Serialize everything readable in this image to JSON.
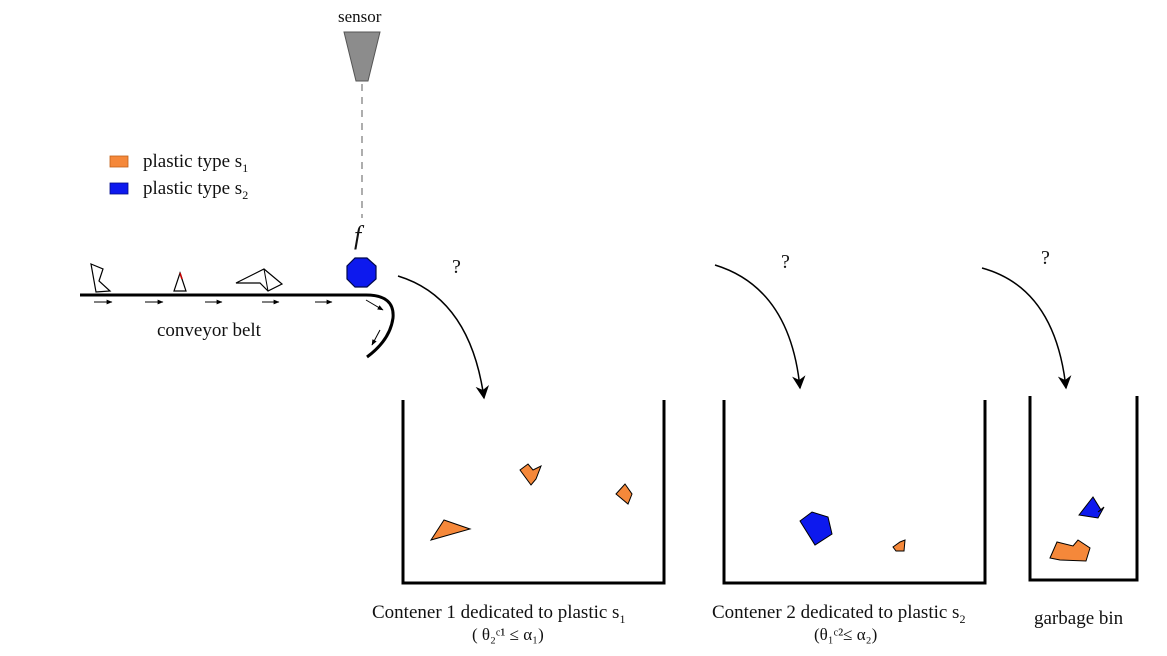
{
  "sensor": {
    "label": "sensor",
    "color": "#8c8c8c"
  },
  "legend": {
    "items": [
      {
        "label": "plastic type s",
        "sub": "1",
        "color": "#f5883a"
      },
      {
        "label": "plastic type s",
        "sub": "2",
        "color": "#0d19ee"
      }
    ]
  },
  "feature_symbol": "f",
  "conveyor": {
    "label": "conveyor belt"
  },
  "decision_marks": [
    "?",
    "?",
    "?"
  ],
  "bins": [
    {
      "title": "Contener 1 dedicated to plastic s",
      "title_sub": "1",
      "condition": "( θ₂ᶜ¹ ≤ α₁)"
    },
    {
      "title": "Contener 2 dedicated to plastic s",
      "title_sub": "2",
      "condition": "(θ₁ᶜ²≤ α₂)"
    },
    {
      "title": "garbage bin",
      "title_sub": "",
      "condition": ""
    }
  ],
  "colors": {
    "orange": "#f5883a",
    "blue": "#0d19ee",
    "ink": "#000000"
  }
}
